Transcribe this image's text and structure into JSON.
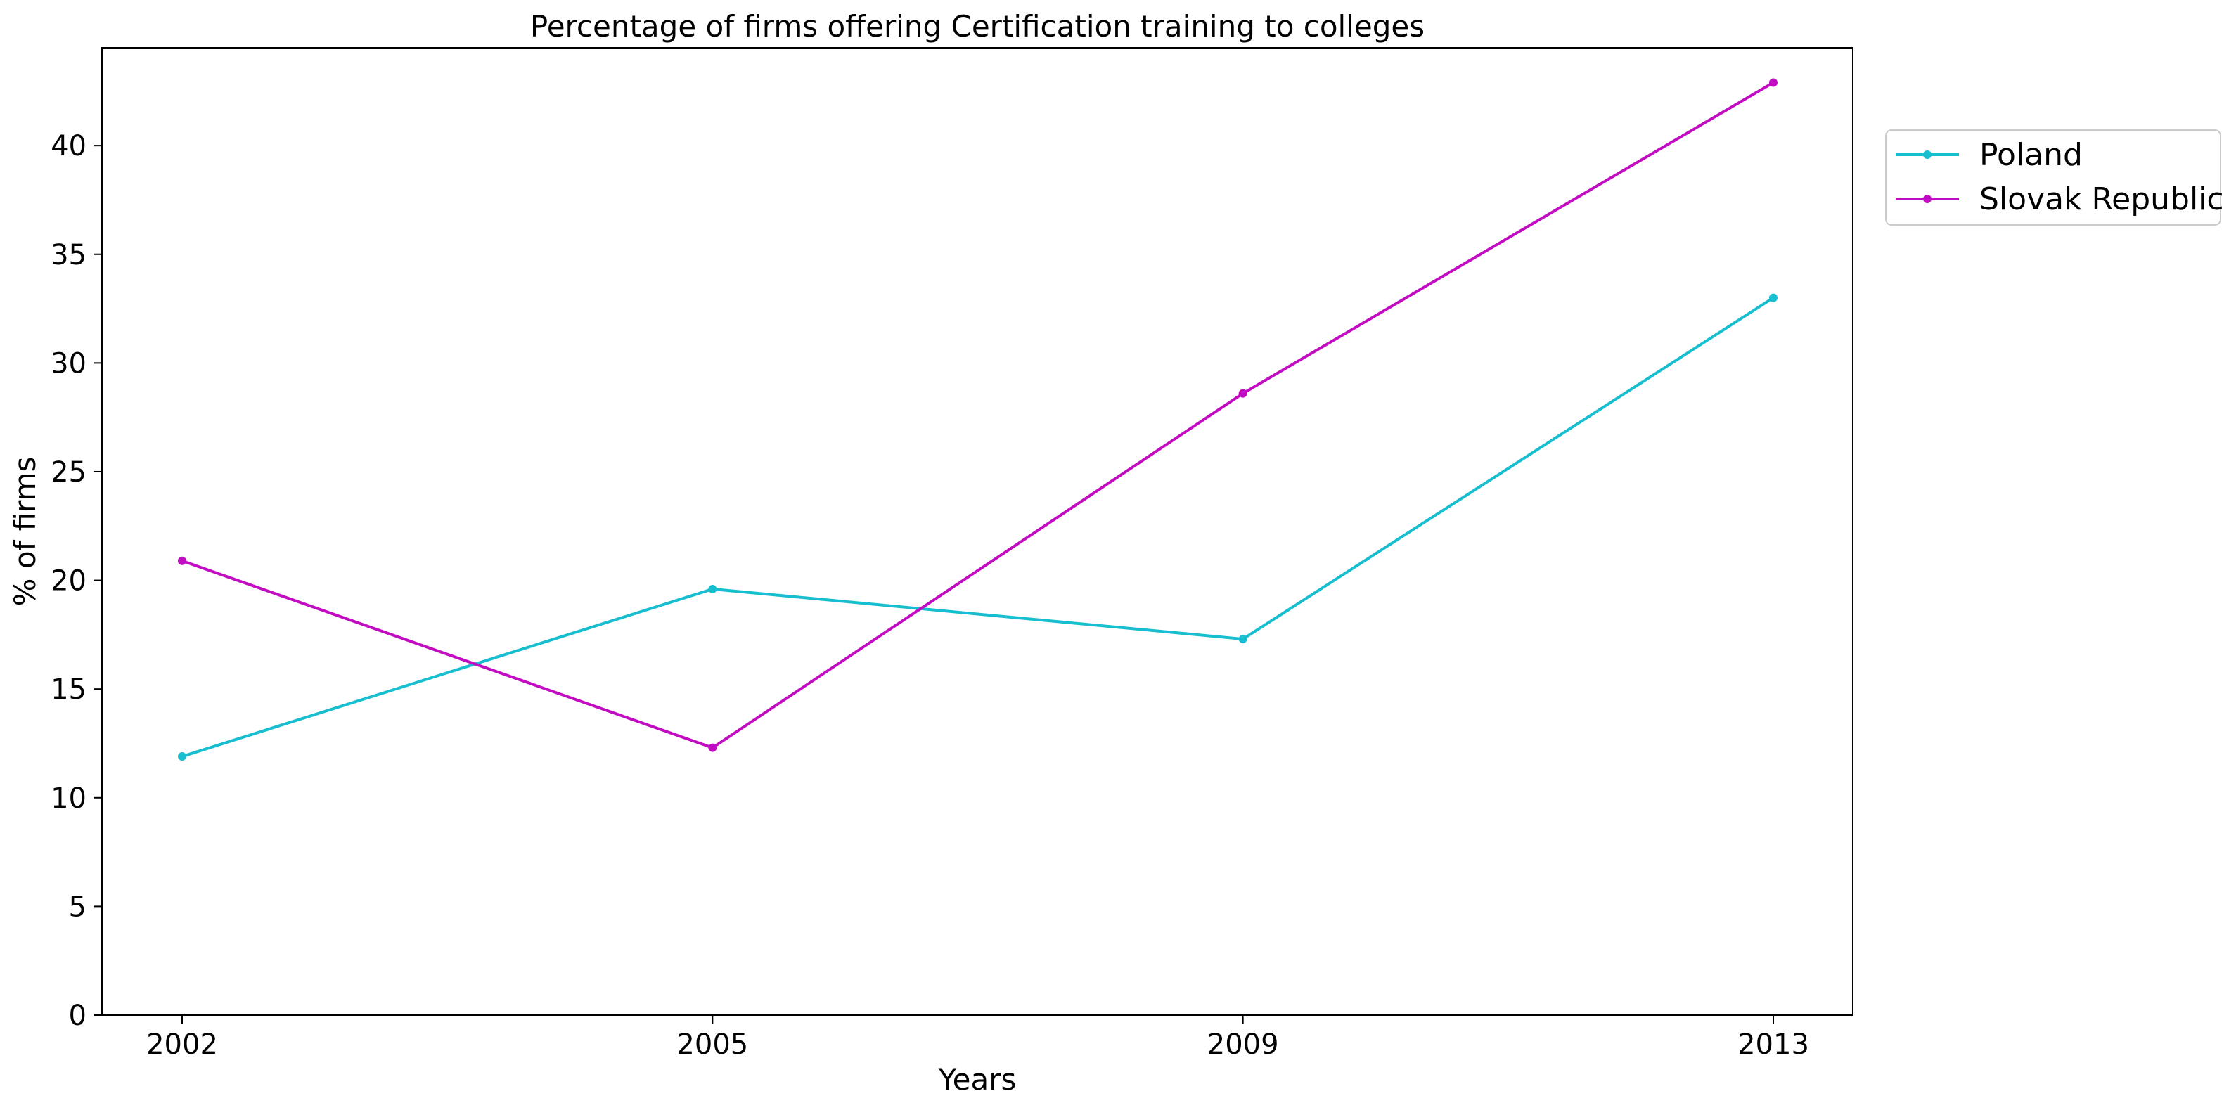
{
  "chart_data": {
    "type": "line",
    "title": "Percentage of firms offering Certification training to colleges",
    "xlabel": "Years",
    "ylabel": "% of firms",
    "categories": [
      "2002",
      "2005",
      "2009",
      "2013"
    ],
    "ylim": [
      0,
      44.5
    ],
    "yticks": [
      0,
      5,
      10,
      15,
      20,
      25,
      30,
      35,
      40
    ],
    "grid": false,
    "legend_position": "upper-right-outside",
    "series": [
      {
        "name": "Poland",
        "color": "#17becf",
        "values": [
          11.9,
          19.6,
          17.3,
          33.0
        ]
      },
      {
        "name": "Slovak Republic",
        "color": "#c20cc2",
        "values": [
          20.9,
          12.3,
          28.6,
          42.9
        ]
      }
    ]
  }
}
